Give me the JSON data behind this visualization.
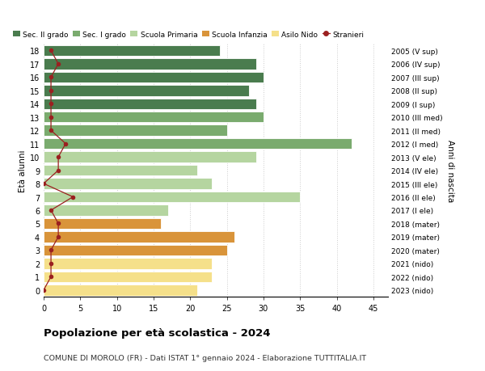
{
  "ages": [
    18,
    17,
    16,
    15,
    14,
    13,
    12,
    11,
    10,
    9,
    8,
    7,
    6,
    5,
    4,
    3,
    2,
    1,
    0
  ],
  "bar_values": [
    24,
    29,
    30,
    28,
    29,
    30,
    25,
    42,
    29,
    21,
    23,
    35,
    17,
    16,
    26,
    25,
    23,
    23,
    21
  ],
  "bar_colors": [
    "#4a7c4e",
    "#4a7c4e",
    "#4a7c4e",
    "#4a7c4e",
    "#4a7c4e",
    "#7aab6e",
    "#7aab6e",
    "#7aab6e",
    "#b5d5a0",
    "#b5d5a0",
    "#b5d5a0",
    "#b5d5a0",
    "#b5d5a0",
    "#d9943a",
    "#d9943a",
    "#d9943a",
    "#f5e08a",
    "#f5e08a",
    "#f5e08a"
  ],
  "stranieri_values": [
    1,
    2,
    1,
    1,
    1,
    1,
    1,
    3,
    2,
    2,
    0,
    4,
    1,
    2,
    2,
    1,
    1,
    1,
    0
  ],
  "right_labels": [
    "2005 (V sup)",
    "2006 (IV sup)",
    "2007 (III sup)",
    "2008 (II sup)",
    "2009 (I sup)",
    "2010 (III med)",
    "2011 (II med)",
    "2012 (I med)",
    "2013 (V ele)",
    "2014 (IV ele)",
    "2015 (III ele)",
    "2016 (II ele)",
    "2017 (I ele)",
    "2018 (mater)",
    "2019 (mater)",
    "2020 (mater)",
    "2021 (nido)",
    "2022 (nido)",
    "2023 (nido)"
  ],
  "legend_labels": [
    "Sec. II grado",
    "Sec. I grado",
    "Scuola Primaria",
    "Scuola Infanzia",
    "Asilo Nido",
    "Stranieri"
  ],
  "legend_colors": [
    "#4a7c4e",
    "#7aab6e",
    "#b5d5a0",
    "#d9943a",
    "#f5e08a",
    "#b22222"
  ],
  "xlabel_vals": [
    0,
    5,
    10,
    15,
    20,
    25,
    30,
    35,
    40,
    45
  ],
  "xlim": [
    0,
    47
  ],
  "ylim": [
    -0.5,
    18.5
  ],
  "title": "Popolazione per età scolastica - 2024",
  "subtitle": "COMUNE DI MOROLO (FR) - Dati ISTAT 1° gennaio 2024 - Elaborazione TUTTITALIA.IT",
  "ylabel": "Età alunni",
  "right_ylabel": "Anni di nascita",
  "bg_color": "#ffffff",
  "grid_color": "#cccccc",
  "stranieri_color": "#9b2020",
  "bar_height": 0.82
}
